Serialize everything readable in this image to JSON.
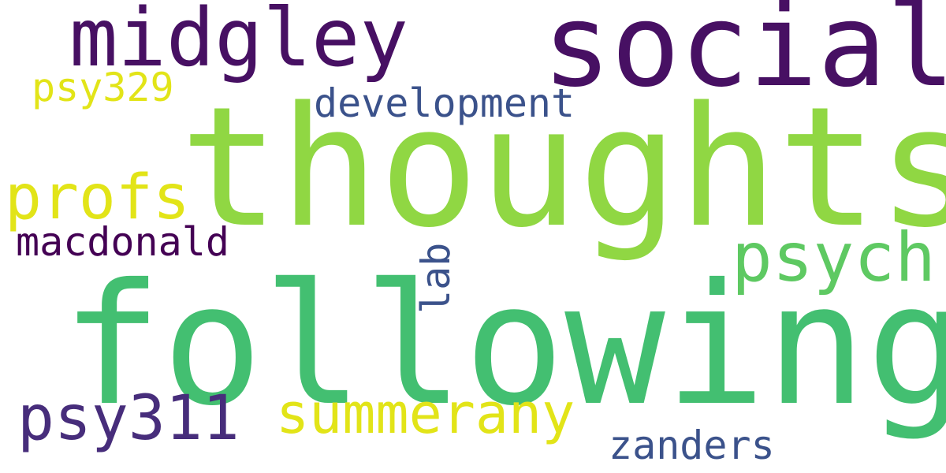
{
  "words": [
    {
      "key": "following",
      "text": "following",
      "color": "#43bf71"
    },
    {
      "key": "thoughts",
      "text": "thoughts",
      "color": "#90d743"
    },
    {
      "key": "social",
      "text": "social",
      "color": "#471063"
    },
    {
      "key": "midgley",
      "text": "midgley",
      "color": "#471063"
    },
    {
      "key": "psych",
      "text": "psych",
      "color": "#5ec962"
    },
    {
      "key": "profs",
      "text": "profs",
      "color": "#e2e418"
    },
    {
      "key": "psy311",
      "text": "psy311",
      "color": "#472d7b"
    },
    {
      "key": "summerany",
      "text": "summerany",
      "color": "#e2e418"
    },
    {
      "key": "development",
      "text": "development",
      "color": "#3b528b"
    },
    {
      "key": "macdonald",
      "text": "macdonald",
      "color": "#440154"
    },
    {
      "key": "psy329",
      "text": "psy329",
      "color": "#e2e418"
    },
    {
      "key": "zanders",
      "text": "zanders",
      "color": "#3b528b"
    },
    {
      "key": "lab",
      "text": "lab",
      "color": "#3b528b",
      "orientation": "vertical"
    }
  ]
}
